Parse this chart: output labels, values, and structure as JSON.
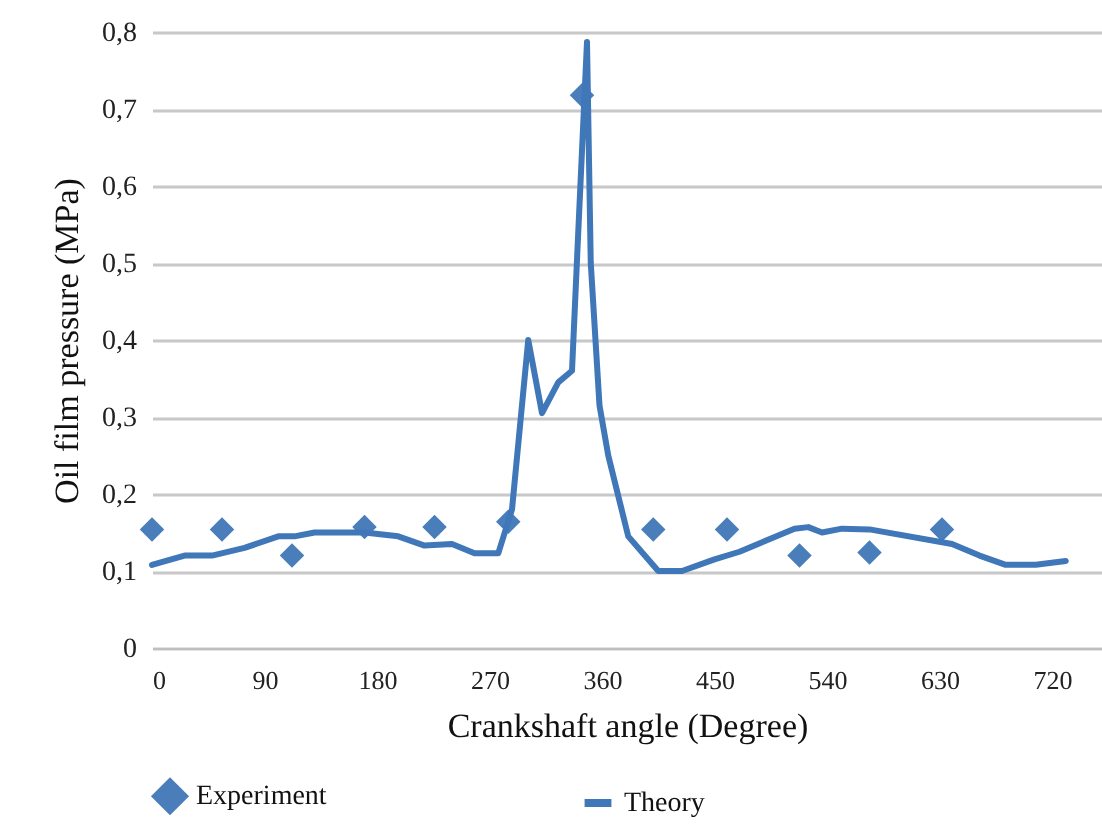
{
  "chart_data": {
    "type": "line",
    "xlabel": "Crankshaft angle (Degree)",
    "ylabel": "Oil film pressure (MPa)",
    "xlim": [
      0,
      760
    ],
    "xticks": [
      0,
      90,
      180,
      270,
      360,
      450,
      540,
      630,
      720
    ],
    "ylim": [
      0,
      0.8
    ],
    "yticks": [
      0,
      {
        "value": 0.1,
        "label": "0,1"
      },
      {
        "value": 0.2,
        "label": "0,2"
      },
      {
        "value": 0.3,
        "label": "0,3"
      },
      {
        "value": 0.4,
        "label": "0,4"
      },
      {
        "value": 0.5,
        "label": "0,5"
      },
      {
        "value": 0.6,
        "label": "0,6"
      },
      {
        "value": 0.7,
        "label": "0,7"
      },
      {
        "value": 0.8,
        "label": "0,8"
      }
    ],
    "grid": "y",
    "legend": "bottom",
    "series": [
      {
        "name": "Experiment",
        "type": "scatter",
        "marker": "diamond",
        "color": "#4a7ebb",
        "x": [
          0,
          56,
          112,
          170,
          226,
          285,
          344,
          401,
          460,
          518,
          574,
          632
        ],
        "values": [
          0.154,
          0.154,
          0.12,
          0.157,
          0.157,
          0.164,
          0.718,
          0.154,
          0.154,
          0.12,
          0.124,
          0.154
        ]
      },
      {
        "name": "Theory",
        "type": "line",
        "color": "#3f77b8",
        "x": [
          0,
          26,
          48,
          74,
          101,
          114,
          130,
          170,
          197,
          218,
          240,
          258,
          277,
          288,
          301,
          312,
          325,
          336,
          341,
          348,
          351,
          358,
          365,
          381,
          405,
          424,
          450,
          470,
          514,
          525,
          536,
          552,
          574,
          640,
          662,
          683,
          707,
          731
        ],
        "values": [
          0.108,
          0.12,
          0.12,
          0.13,
          0.145,
          0.145,
          0.15,
          0.15,
          0.145,
          0.133,
          0.135,
          0.123,
          0.123,
          0.18,
          0.4,
          0.305,
          0.345,
          0.36,
          0.54,
          0.787,
          0.5,
          0.315,
          0.25,
          0.145,
          0.1,
          0.1,
          0.115,
          0.125,
          0.155,
          0.157,
          0.15,
          0.155,
          0.154,
          0.135,
          0.12,
          0.108,
          0.108,
          0.113
        ]
      }
    ]
  }
}
